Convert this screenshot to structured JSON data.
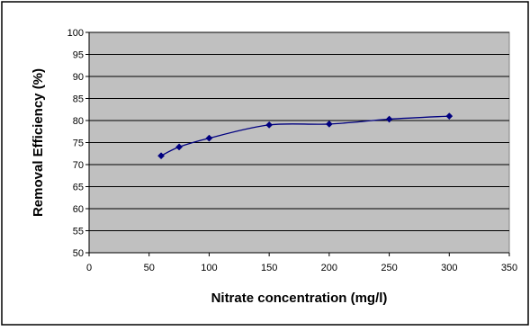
{
  "chart_data": {
    "type": "line",
    "title": "",
    "xlabel": "Nitrate concentration (mg/l)",
    "ylabel": "Removal Efficiency (%)",
    "xlim": [
      0,
      350
    ],
    "ylim": [
      50,
      100
    ],
    "x_ticks": [
      "0",
      "50",
      "100",
      "150",
      "200",
      "250",
      "300",
      "350"
    ],
    "y_ticks": [
      "50",
      "55",
      "60",
      "65",
      "70",
      "75",
      "80",
      "85",
      "90",
      "95",
      "100"
    ],
    "grid": "horizontal",
    "legend": "none",
    "smooth": true,
    "series": [
      {
        "x": [
          60,
          75,
          100,
          150,
          200,
          250,
          300
        ],
        "y": [
          72,
          74,
          76,
          79,
          79.2,
          80.3,
          81
        ],
        "color": "#000080",
        "marker": "diamond"
      }
    ],
    "colors": {
      "plot_background": "#c0c0c0",
      "gridline": "#000000",
      "line": "#000080"
    }
  }
}
